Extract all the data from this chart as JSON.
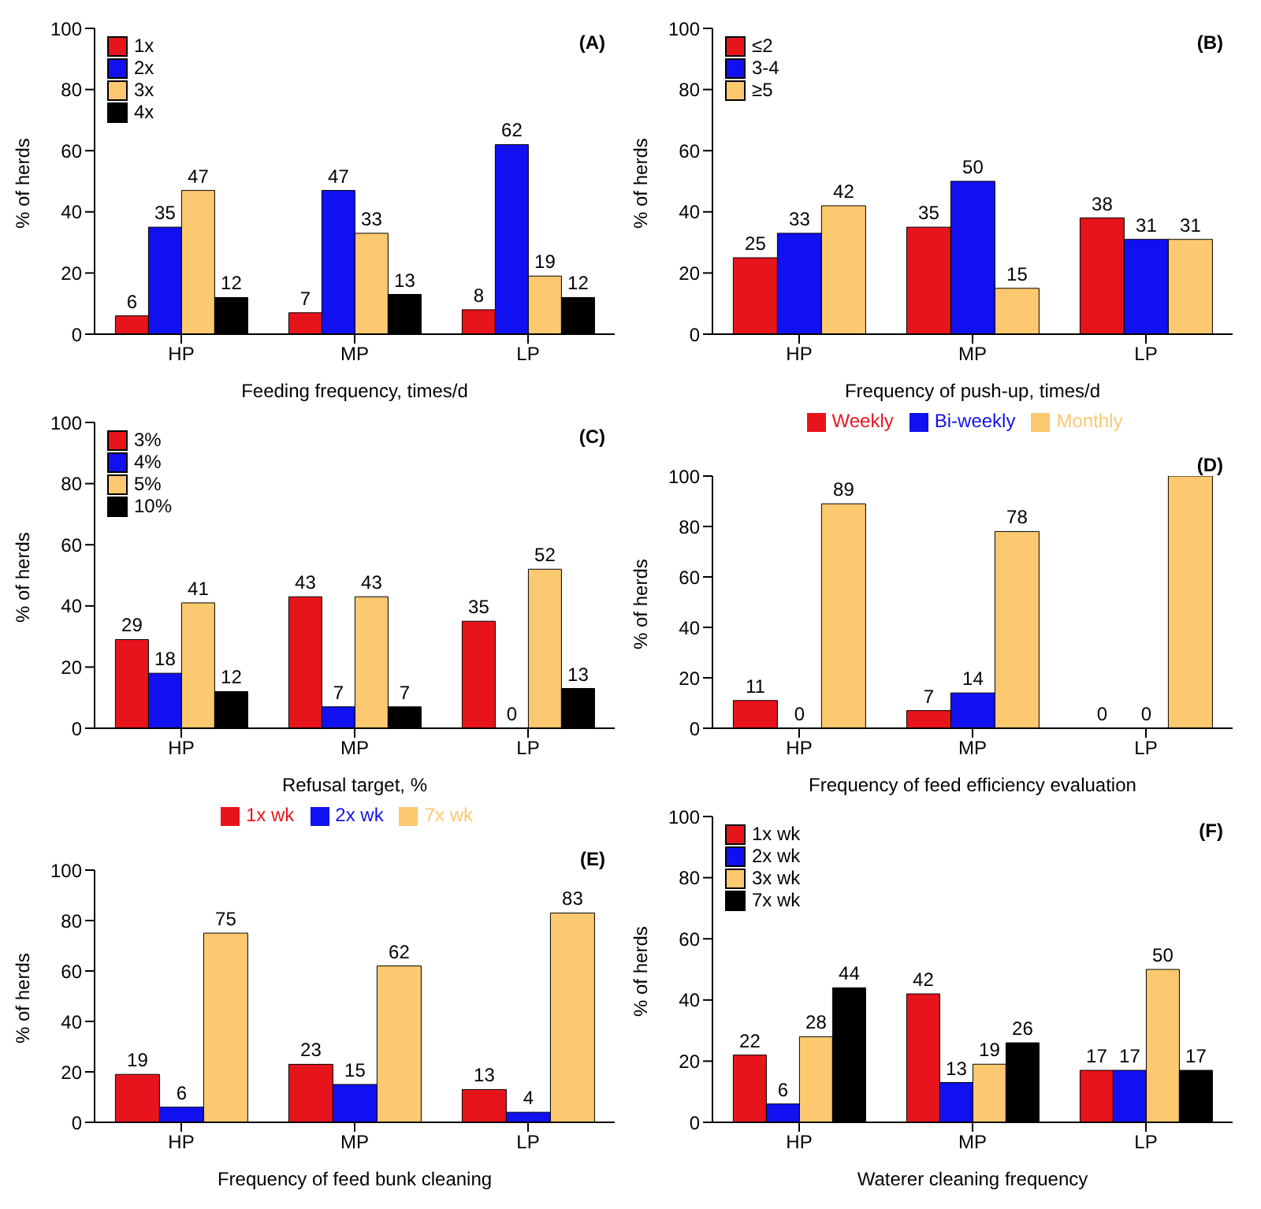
{
  "chart_data": [
    {
      "type": "bar",
      "title": "(A)",
      "xlabel": "Feeding frequency, times/d",
      "ylabel": "% of herds",
      "categories": [
        "HP",
        "MP",
        "LP"
      ],
      "ylim": [
        0,
        100
      ],
      "yticks": [
        0,
        20,
        40,
        60,
        80,
        100
      ],
      "legend": "top left",
      "data_labels": true,
      "series": [
        {
          "name": "1x",
          "color": "#e8141c",
          "values": [
            6,
            7,
            8
          ]
        },
        {
          "name": "2x",
          "color": "#1010f0",
          "values": [
            35,
            47,
            62
          ]
        },
        {
          "name": "3x",
          "color": "#fcc870",
          "values": [
            47,
            33,
            19
          ]
        },
        {
          "name": "4x",
          "color": "#000000",
          "values": [
            12,
            13,
            12
          ]
        }
      ]
    },
    {
      "type": "bar",
      "title": "(B)",
      "xlabel": "Frequency of push-up, times/d",
      "ylabel": "% of herds",
      "categories": [
        "HP",
        "MP",
        "LP"
      ],
      "ylim": [
        0,
        100
      ],
      "yticks": [
        0,
        20,
        40,
        60,
        80,
        100
      ],
      "legend": "top left",
      "data_labels": true,
      "series": [
        {
          "name": "≤2",
          "color": "#e8141c",
          "values": [
            25,
            35,
            38
          ]
        },
        {
          "name": "3-4",
          "color": "#1010f0",
          "values": [
            33,
            50,
            31
          ]
        },
        {
          "name": "≥5",
          "color": "#fcc870",
          "values": [
            42,
            15,
            31
          ]
        }
      ]
    },
    {
      "type": "bar",
      "title": "(C)",
      "xlabel": "Refusal target, %",
      "ylabel": "% of herds",
      "categories": [
        "HP",
        "MP",
        "LP"
      ],
      "ylim": [
        0,
        100
      ],
      "yticks": [
        0,
        20,
        40,
        60,
        80,
        100
      ],
      "legend": "top left",
      "data_labels": true,
      "series": [
        {
          "name": "3%",
          "color": "#e8141c",
          "values": [
            29,
            43,
            35
          ]
        },
        {
          "name": "4%",
          "color": "#1010f0",
          "values": [
            18,
            7,
            0
          ]
        },
        {
          "name": "5%",
          "color": "#fcc870",
          "values": [
            41,
            43,
            52
          ]
        },
        {
          "name": "10%",
          "color": "#000000",
          "values": [
            12,
            7,
            13
          ]
        }
      ]
    },
    {
      "type": "bar",
      "title": "(D)",
      "xlabel": "Frequency of feed efficiency evaluation",
      "ylabel": "% of herds",
      "categories": [
        "HP",
        "MP",
        "LP"
      ],
      "ylim": [
        0,
        100
      ],
      "yticks": [
        0,
        20,
        40,
        60,
        80,
        100
      ],
      "legend": "top",
      "series": [
        {
          "name": "Weekly",
          "color": "#e8141c",
          "values": [
            11,
            7,
            0
          ],
          "value_labels": [
            "11",
            "7",
            "0"
          ]
        },
        {
          "name": "Bi-weekly",
          "color": "#1010f0",
          "values": [
            0,
            14,
            0
          ],
          "value_labels": [
            "0",
            "14",
            "0"
          ]
        },
        {
          "name": "Monthly",
          "color": "#fcc870",
          "values": [
            89,
            78,
            100
          ],
          "value_labels": [
            "89",
            "78",
            null
          ]
        }
      ]
    },
    {
      "type": "bar",
      "title": "(E)",
      "xlabel": "Frequency of feed bunk cleaning",
      "ylabel": "% of herds",
      "categories": [
        "HP",
        "MP",
        "LP"
      ],
      "ylim": [
        0,
        100
      ],
      "yticks": [
        0,
        20,
        40,
        60,
        80,
        100
      ],
      "legend": "top",
      "data_labels": true,
      "series": [
        {
          "name": "1x wk",
          "color": "#e8141c",
          "values": [
            19,
            23,
            13
          ]
        },
        {
          "name": "2x wk",
          "color": "#1010f0",
          "values": [
            6,
            15,
            4
          ]
        },
        {
          "name": "7x wk",
          "color": "#fcc870",
          "values": [
            75,
            62,
            83
          ]
        }
      ]
    },
    {
      "type": "bar",
      "title": "(F)",
      "xlabel": "Waterer cleaning frequency",
      "ylabel": "% of herds",
      "categories": [
        "HP",
        "MP",
        "LP"
      ],
      "ylim": [
        0,
        100
      ],
      "yticks": [
        0,
        20,
        40,
        60,
        80,
        100
      ],
      "legend": "top left",
      "data_labels": true,
      "series": [
        {
          "name": "1x wk",
          "color": "#e8141c",
          "values": [
            22,
            42,
            17
          ]
        },
        {
          "name": "2x wk",
          "color": "#1010f0",
          "values": [
            6,
            13,
            17
          ]
        },
        {
          "name": "3x wk",
          "color": "#fcc870",
          "values": [
            28,
            19,
            50
          ]
        },
        {
          "name": "7x wk",
          "color": "#000000",
          "values": [
            44,
            26,
            17
          ]
        }
      ]
    }
  ]
}
